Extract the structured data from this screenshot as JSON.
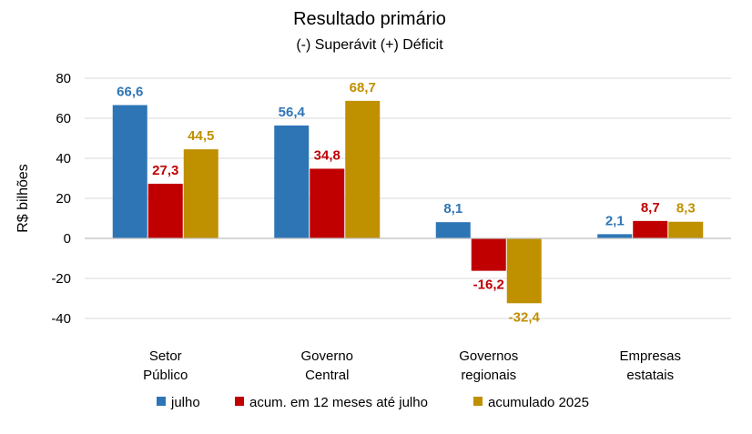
{
  "chart_data": {
    "type": "bar",
    "title": "Resultado primário",
    "subtitle": "(-) Superávit  (+) Déficit",
    "ylabel": "R$ bilhões",
    "xlabel": "",
    "ylim": [
      -40,
      80
    ],
    "yticks": [
      80,
      60,
      40,
      20,
      0,
      -20,
      -40
    ],
    "grid": true,
    "legend_position": "bottom",
    "categories": [
      [
        "Setor",
        "Público"
      ],
      [
        "Governo",
        "Central"
      ],
      [
        "Governos",
        "regionais"
      ],
      [
        "Empresas",
        "estatais"
      ]
    ],
    "series": [
      {
        "name": "julho",
        "color": "#2E75B6",
        "values": [
          66.6,
          56.4,
          8.1,
          2.1
        ],
        "labels": [
          "66,6",
          "56,4",
          "8,1",
          "2,1"
        ]
      },
      {
        "name": "acum. em 12 meses até julho",
        "color": "#C00000",
        "values": [
          27.3,
          34.8,
          -16.2,
          8.7
        ],
        "labels": [
          "27,3",
          "34,8",
          "-16,2",
          "8,7"
        ]
      },
      {
        "name": "acumulado 2025",
        "color": "#BF9000",
        "values": [
          44.5,
          68.7,
          -32.4,
          8.3
        ],
        "labels": [
          "44,5",
          "68,7",
          "-32,4",
          "8,3"
        ]
      }
    ]
  }
}
